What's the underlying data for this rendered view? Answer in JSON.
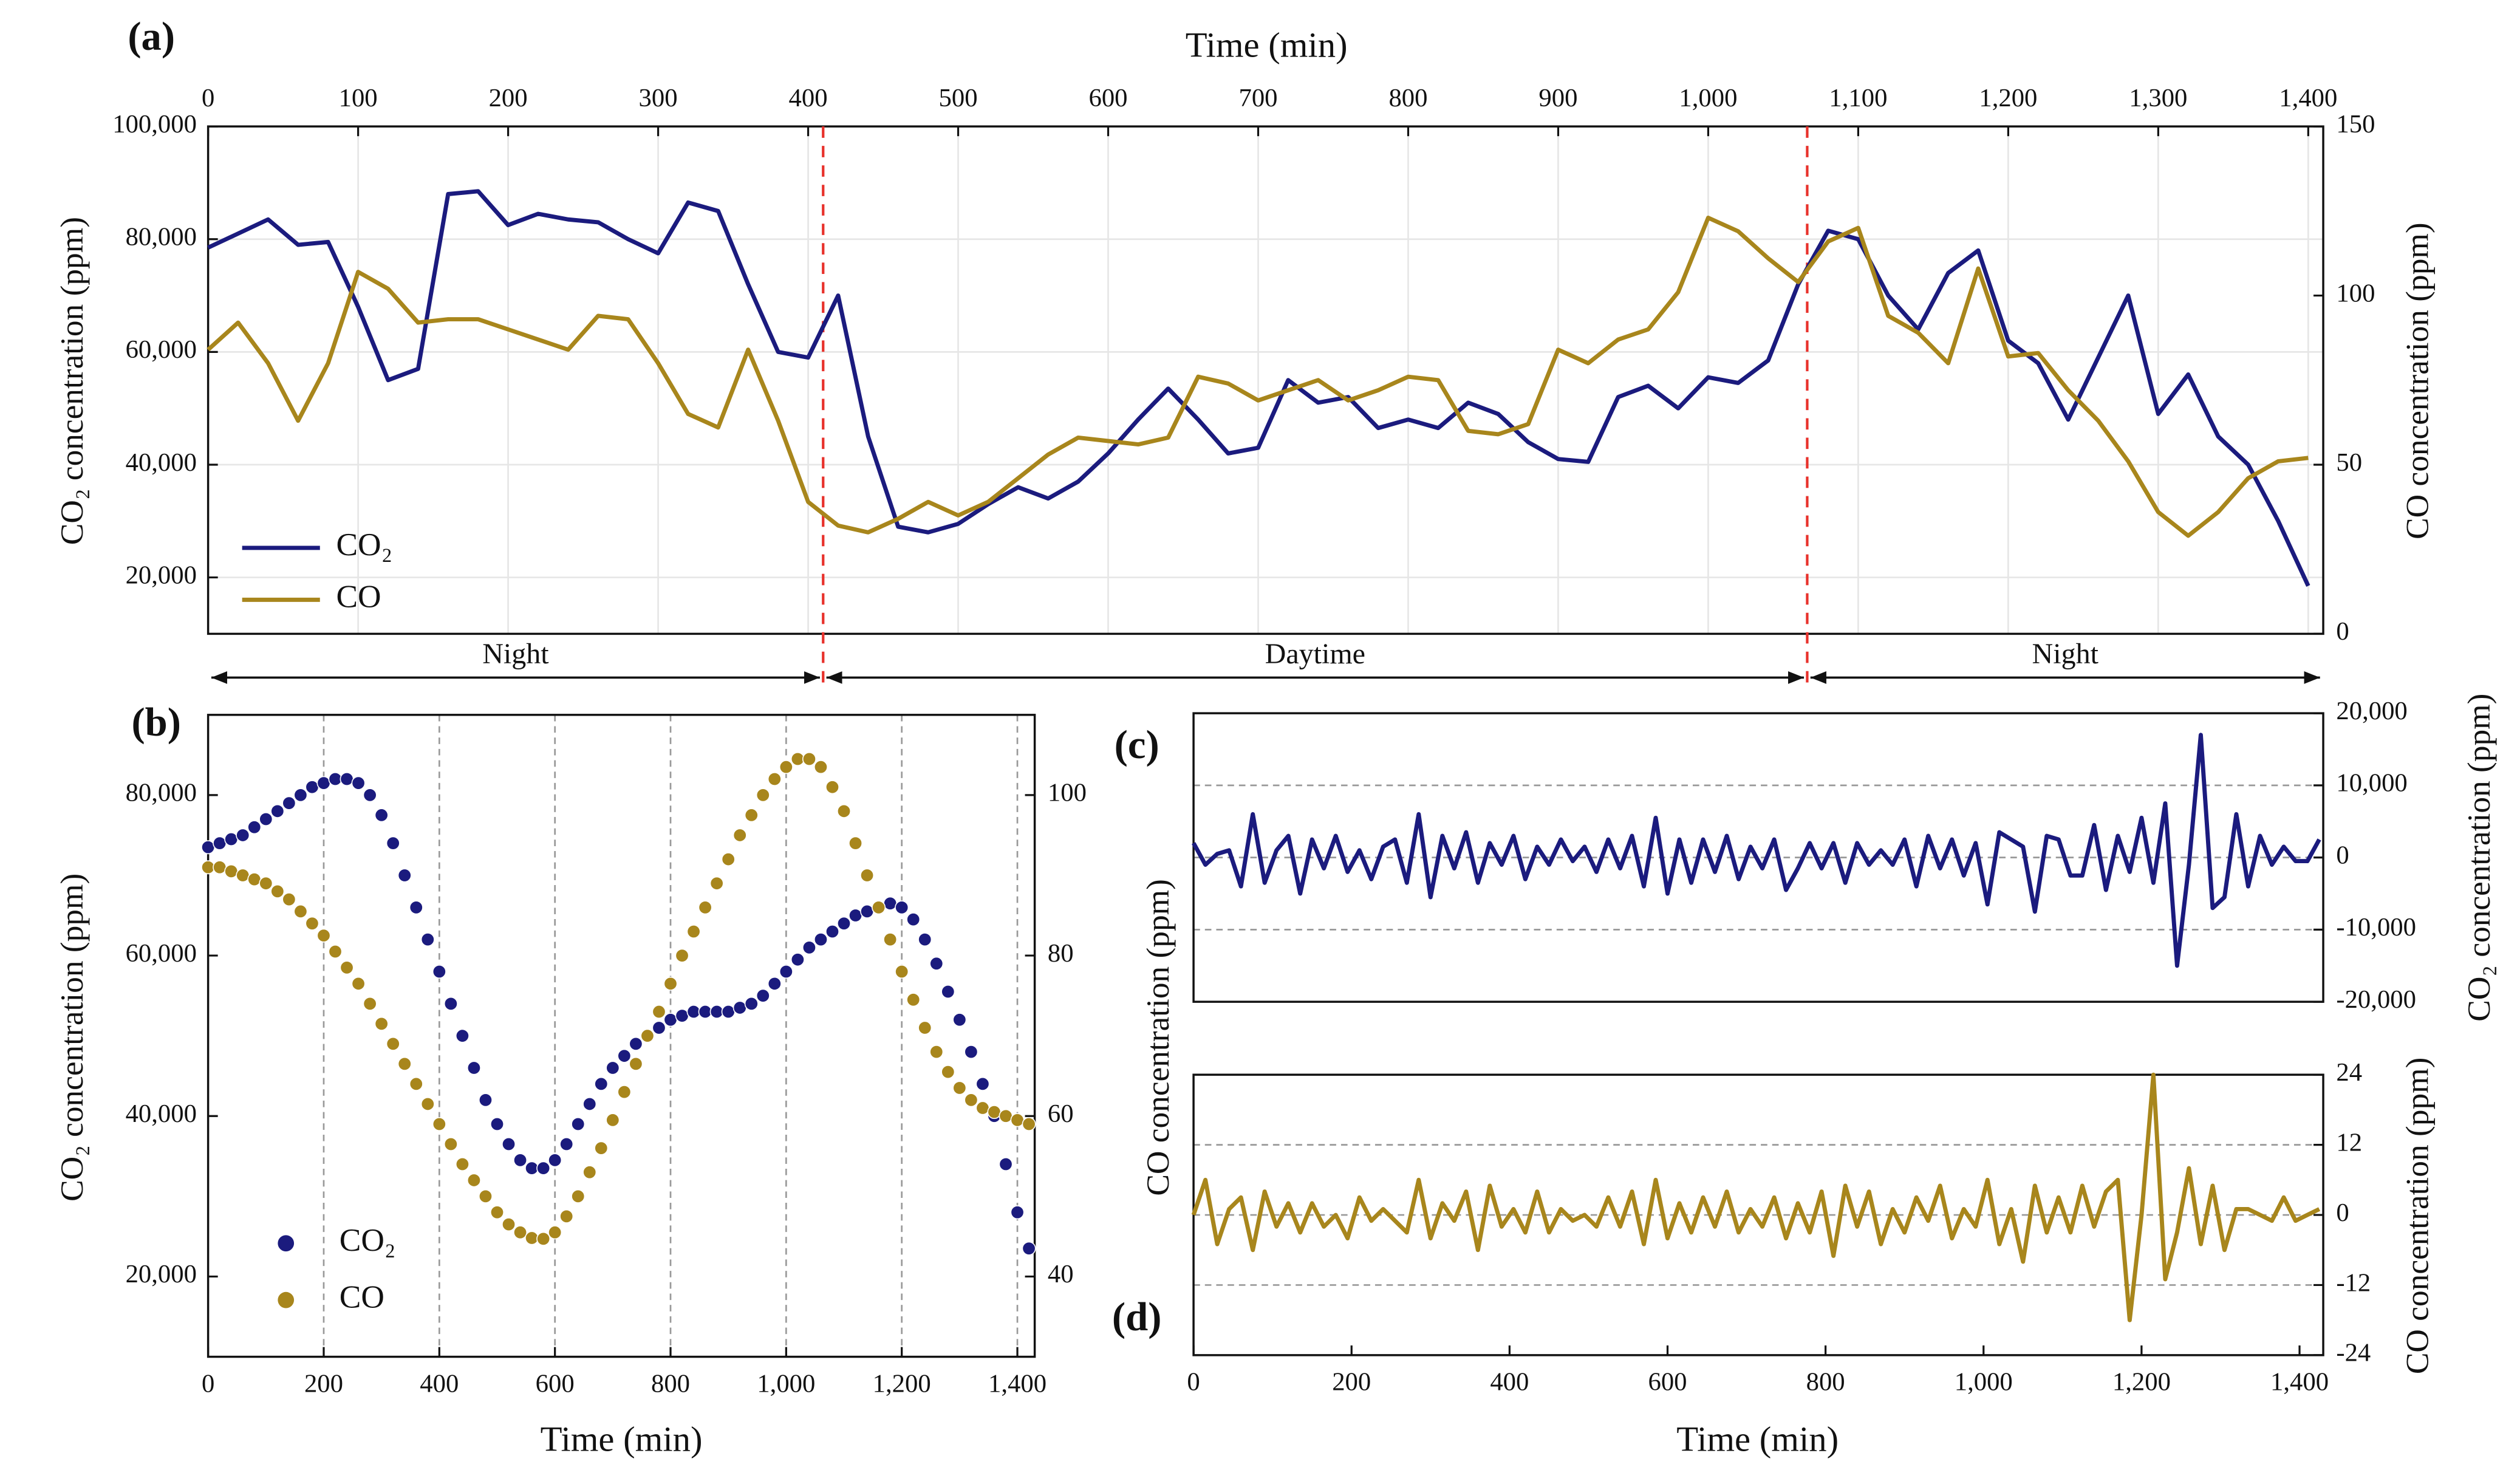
{
  "chart_data": [
    {
      "type": "line",
      "panel_label": "(a)",
      "xlabel": "Time (min)",
      "ylabel": "CO₂ concentration (ppm)",
      "y2label": "CO concentration (ppm)",
      "x": [
        0,
        20,
        40,
        60,
        80,
        100,
        120,
        140,
        160,
        180,
        200,
        220,
        240,
        260,
        280,
        300,
        320,
        340,
        360,
        380,
        400,
        420,
        440,
        460,
        480,
        500,
        520,
        540,
        560,
        580,
        600,
        620,
        640,
        660,
        680,
        700,
        720,
        740,
        760,
        780,
        800,
        820,
        840,
        860,
        880,
        900,
        920,
        940,
        960,
        980,
        1000,
        1020,
        1040,
        1060,
        1080,
        1100,
        1120,
        1140,
        1160,
        1180,
        1200,
        1220,
        1240,
        1260,
        1280,
        1300,
        1320,
        1340,
        1360,
        1380,
        1400
      ],
      "series": [
        {
          "name": "CO₂",
          "color": "#1b1b7e",
          "values": [
            78500,
            81000,
            83500,
            79000,
            79500,
            68000,
            55000,
            57000,
            88000,
            88500,
            82500,
            84500,
            83500,
            83000,
            80000,
            77500,
            86500,
            85000,
            72000,
            60000,
            59000,
            70000,
            45000,
            29000,
            28000,
            29500,
            33000,
            36000,
            34000,
            37000,
            42000,
            48000,
            53500,
            48000,
            42000,
            43000,
            55000,
            51000,
            52000,
            46500,
            48000,
            46500,
            51000,
            49000,
            44000,
            41000,
            40500,
            52000,
            54000,
            50000,
            55500,
            54500,
            58500,
            72000,
            81500,
            80000,
            70000,
            64000,
            74000,
            78000,
            62000,
            58000,
            48000,
            59000,
            70000,
            49000,
            56000,
            45000,
            40000,
            30000,
            18500
          ]
        },
        {
          "name": "CO",
          "color": "#a8861c",
          "axis": "y2",
          "values": [
            84,
            92,
            80,
            63,
            80,
            107,
            102,
            92,
            93,
            93,
            90,
            87,
            84,
            94,
            93,
            80,
            65,
            61,
            84,
            63,
            39,
            32,
            30,
            34,
            39,
            35,
            39,
            46,
            53,
            58,
            57,
            56,
            58,
            76,
            74,
            69,
            72,
            75,
            69,
            72,
            76,
            75,
            60,
            59,
            62,
            84,
            80,
            87,
            90,
            101,
            123,
            119,
            111,
            104,
            116,
            120,
            94,
            89,
            80,
            108,
            82,
            83,
            72,
            63,
            51,
            36,
            29,
            36,
            46,
            51,
            52
          ]
        }
      ],
      "xlim": [
        0,
        1410
      ],
      "xticks": [
        0,
        100,
        200,
        300,
        400,
        500,
        600,
        700,
        800,
        900,
        {
          "value": 1000,
          "label": "1,000"
        },
        {
          "value": 1100,
          "label": "1,100"
        },
        {
          "value": 1200,
          "label": "1,200"
        },
        {
          "value": 1300,
          "label": "1,300"
        },
        {
          "value": 1400,
          "label": "1,400"
        }
      ],
      "ylim": [
        10000,
        100000
      ],
      "yticks": [
        {
          "value": 20000,
          "label": "20,000"
        },
        {
          "value": 40000,
          "label": "40,000"
        },
        {
          "value": 60000,
          "label": "60,000"
        },
        {
          "value": 80000,
          "label": "80,000"
        },
        {
          "value": 100000,
          "label": "100,000"
        }
      ],
      "y2lim": [
        0,
        150
      ],
      "y2ticks": [
        0,
        50,
        100,
        150
      ],
      "grid": "both",
      "legend": "lower left",
      "dividers": [
        410,
        1066
      ],
      "period_labels": [
        "Night",
        "Daytime",
        "Night"
      ]
    },
    {
      "type": "scatter",
      "panel_label": "(b)",
      "xlabel": "Time (min)",
      "ylabel": "CO₂ concentration (ppm)",
      "x": [
        0,
        20,
        40,
        60,
        80,
        100,
        120,
        140,
        160,
        180,
        200,
        220,
        240,
        260,
        280,
        300,
        320,
        340,
        360,
        380,
        400,
        420,
        440,
        460,
        480,
        500,
        520,
        540,
        560,
        580,
        600,
        620,
        640,
        660,
        680,
        700,
        720,
        740,
        760,
        780,
        800,
        820,
        840,
        860,
        880,
        900,
        920,
        940,
        960,
        980,
        1000,
        1020,
        1040,
        1060,
        1080,
        1100,
        1120,
        1140,
        1160,
        1180,
        1200,
        1220,
        1240,
        1260,
        1280,
        1300,
        1320,
        1340,
        1360,
        1380,
        1400,
        1420
      ],
      "series": [
        {
          "name": "CO₂",
          "color": "#1b1b7e",
          "values": [
            73500,
            74000,
            74500,
            75000,
            76000,
            77000,
            78000,
            79000,
            80000,
            81000,
            81500,
            82000,
            82000,
            81500,
            80000,
            77500,
            74000,
            70000,
            66000,
            62000,
            58000,
            54000,
            50000,
            46000,
            42000,
            39000,
            36500,
            34500,
            33500,
            33500,
            34500,
            36500,
            39000,
            41500,
            44000,
            46000,
            47500,
            49000,
            50000,
            51000,
            52000,
            52500,
            53000,
            53000,
            53000,
            53000,
            53500,
            54000,
            55000,
            56500,
            58000,
            59500,
            61000,
            62000,
            63000,
            64000,
            65000,
            65500,
            66000,
            66500,
            66000,
            64500,
            62000,
            59000,
            55500,
            52000,
            48000,
            44000,
            40000,
            34000,
            28000,
            23500
          ]
        },
        {
          "name": "CO",
          "color": "#a8861c",
          "axis": "y2",
          "values": [
            91,
            91,
            90.5,
            90,
            89.5,
            89,
            88,
            87,
            85.5,
            84,
            82.5,
            80.5,
            78.5,
            76.5,
            74,
            71.5,
            69,
            66.5,
            64,
            61.5,
            59,
            56.5,
            54,
            52,
            50,
            48,
            46.5,
            45.5,
            44.8,
            44.7,
            45.5,
            47.5,
            50,
            53,
            56,
            59.5,
            63,
            66.5,
            70,
            73,
            76.5,
            80,
            83,
            86,
            89,
            92,
            95,
            97.5,
            100,
            102,
            103.5,
            104.5,
            104.5,
            103.5,
            101,
            98,
            94,
            90,
            86,
            82,
            78,
            74.5,
            71,
            68,
            65.5,
            63.5,
            62,
            61,
            60.5,
            60,
            59.5,
            59
          ]
        }
      ],
      "xlim": [
        0,
        1430
      ],
      "xticks": [
        0,
        200,
        400,
        600,
        800,
        {
          "value": 1000,
          "label": "1,000"
        },
        {
          "value": 1200,
          "label": "1,200"
        },
        {
          "value": 1400,
          "label": "1,400"
        }
      ],
      "ylim": [
        10000,
        90000
      ],
      "yticks": [
        {
          "value": 20000,
          "label": "20,000"
        },
        {
          "value": 40000,
          "label": "40,000"
        },
        {
          "value": 60000,
          "label": "60,000"
        },
        {
          "value": 80000,
          "label": "80,000"
        }
      ],
      "y2lim": [
        30,
        110
      ],
      "y2ticks": [
        40,
        60,
        80,
        100
      ],
      "grid": "x",
      "legend": "lower left"
    },
    {
      "type": "line",
      "panel_label": "(c)",
      "ylabel": "CO concentration (ppm)",
      "y2label": "CO₂ concentration (ppm)",
      "x": [
        0,
        15,
        30,
        45,
        60,
        75,
        90,
        105,
        120,
        135,
        150,
        165,
        180,
        195,
        210,
        225,
        240,
        255,
        270,
        285,
        300,
        315,
        330,
        345,
        360,
        375,
        390,
        405,
        420,
        435,
        450,
        465,
        480,
        495,
        510,
        525,
        540,
        555,
        570,
        585,
        600,
        615,
        630,
        645,
        660,
        675,
        690,
        705,
        720,
        735,
        750,
        765,
        780,
        795,
        810,
        825,
        840,
        855,
        870,
        885,
        900,
        915,
        930,
        945,
        960,
        975,
        990,
        1005,
        1020,
        1035,
        1050,
        1065,
        1080,
        1095,
        1110,
        1125,
        1140,
        1155,
        1170,
        1185,
        1200,
        1215,
        1230,
        1245,
        1260,
        1275,
        1290,
        1305,
        1320,
        1335,
        1350,
        1365,
        1380,
        1395,
        1410,
        1425
      ],
      "series": [
        {
          "color": "#1b1b7e",
          "axis": "y2",
          "values": [
            2000,
            -1000,
            500,
            1000,
            -4000,
            6000,
            -3500,
            1000,
            3000,
            -5000,
            2500,
            -1500,
            3000,
            -2000,
            1000,
            -3000,
            1500,
            2500,
            -3500,
            6000,
            -5500,
            3000,
            -1500,
            3500,
            -3500,
            2000,
            -1000,
            3000,
            -3000,
            1500,
            -1000,
            2500,
            -500,
            1500,
            -2000,
            2500,
            -1500,
            3000,
            -4000,
            5500,
            -5000,
            2500,
            -3500,
            2500,
            -2000,
            3000,
            -3000,
            1500,
            -1500,
            2500,
            -4500,
            -1500,
            2000,
            -1500,
            2000,
            -3500,
            2000,
            -1000,
            1000,
            -1000,
            2500,
            -4000,
            3000,
            -1500,
            2500,
            -2500,
            2000,
            -6500,
            3500,
            2500,
            1500,
            -7500,
            3000,
            2500,
            -2500,
            -2500,
            4500,
            -4500,
            3000,
            -2000,
            5500,
            -3500,
            7500,
            -15000,
            -1000,
            17000,
            -7000,
            -5500,
            6000,
            -4000,
            3000,
            -1000,
            1500,
            -500,
            -500,
            2500
          ]
        }
      ],
      "xlim": [
        0,
        1430
      ],
      "y2lim": [
        -20000,
        20000
      ],
      "y2ticks": [
        {
          "value": -20000,
          "label": "-20,000"
        },
        {
          "value": -10000,
          "label": "-10,000"
        },
        0,
        {
          "value": 10000,
          "label": "10,000"
        },
        {
          "value": 20000,
          "label": "20,000"
        }
      ],
      "grid": "y"
    },
    {
      "type": "line",
      "panel_label": "(d)",
      "xlabel": "Time (min)",
      "y2label": "CO concentration (ppm)",
      "x": [
        0,
        15,
        30,
        45,
        60,
        75,
        90,
        105,
        120,
        135,
        150,
        165,
        180,
        195,
        210,
        225,
        240,
        255,
        270,
        285,
        300,
        315,
        330,
        345,
        360,
        375,
        390,
        405,
        420,
        435,
        450,
        465,
        480,
        495,
        510,
        525,
        540,
        555,
        570,
        585,
        600,
        615,
        630,
        645,
        660,
        675,
        690,
        705,
        720,
        735,
        750,
        765,
        780,
        795,
        810,
        825,
        840,
        855,
        870,
        885,
        900,
        915,
        930,
        945,
        960,
        975,
        990,
        1005,
        1020,
        1035,
        1050,
        1065,
        1080,
        1095,
        1110,
        1125,
        1140,
        1155,
        1170,
        1185,
        1200,
        1215,
        1230,
        1245,
        1260,
        1275,
        1290,
        1305,
        1320,
        1335,
        1350,
        1365,
        1380,
        1395,
        1410,
        1425
      ],
      "series": [
        {
          "color": "#a8861c",
          "axis": "y2",
          "values": [
            0,
            6,
            -5,
            1,
            3,
            -6,
            4,
            -2,
            2,
            -3,
            2,
            -2,
            0,
            -4,
            3,
            -1,
            1,
            -1,
            -3,
            6,
            -4,
            2,
            -1,
            4,
            -6,
            5,
            -2,
            1,
            -3,
            4,
            -3,
            1,
            -1,
            0,
            -2,
            3,
            -2,
            4,
            -5,
            6,
            -4,
            2,
            -3,
            3,
            -2,
            4,
            -3,
            1,
            -2,
            3,
            -4,
            2,
            -3,
            4,
            -7,
            5,
            -2,
            4,
            -5,
            1,
            -3,
            3,
            -1,
            5,
            -4,
            1,
            -2,
            6,
            -5,
            1,
            -8,
            5,
            -3,
            3,
            -3,
            5,
            -2,
            4,
            6,
            -18,
            0,
            24,
            -11,
            -3,
            8,
            -5,
            5,
            -6,
            1,
            1,
            0,
            -1,
            3,
            -1,
            0,
            1
          ]
        }
      ],
      "xlim": [
        0,
        1430
      ],
      "xticks": [
        0,
        200,
        400,
        600,
        800,
        {
          "value": 1000,
          "label": "1,000"
        },
        {
          "value": 1200,
          "label": "1,200"
        },
        {
          "value": 1400,
          "label": "1,400"
        }
      ],
      "y2lim": [
        -24,
        24
      ],
      "y2ticks": [
        -24,
        -12,
        0,
        12,
        24
      ],
      "grid": "y"
    }
  ]
}
